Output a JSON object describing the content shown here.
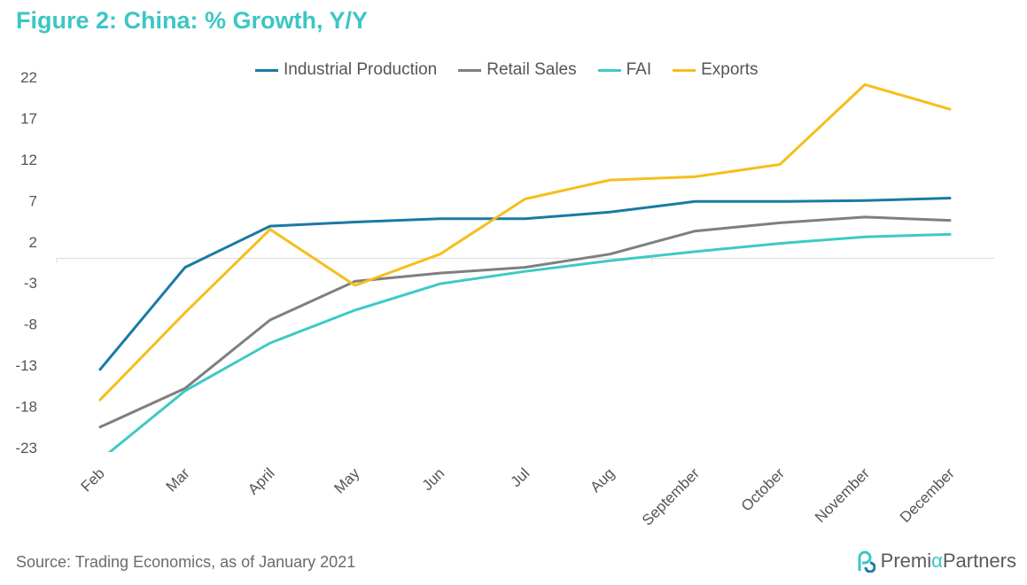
{
  "title": "Figure 2: China: % Growth, Y/Y",
  "source": "Source: Trading Economics, as of January 2021",
  "brand": {
    "part1": "Premi",
    "part2": "α",
    "part3": " Partners",
    "icon": "premia-logo-icon"
  },
  "chart_data": {
    "type": "line",
    "categories": [
      "Feb",
      "Mar",
      "April",
      "May",
      "Jun",
      "Jul",
      "Aug",
      "September",
      "October",
      "November",
      "December"
    ],
    "series": [
      {
        "name": "Industrial Production",
        "color": "#1a7aa5",
        "values": [
          -13.5,
          -1.1,
          3.9,
          4.4,
          4.8,
          4.8,
          5.6,
          6.9,
          6.9,
          7.0,
          7.3
        ]
      },
      {
        "name": "Retail Sales",
        "color": "#7f7f7f",
        "values": [
          -20.5,
          -15.8,
          -7.5,
          -2.8,
          -1.8,
          -1.1,
          0.5,
          3.3,
          4.3,
          5.0,
          4.6
        ]
      },
      {
        "name": "FAI",
        "color": "#3dcac6",
        "values": [
          -24.5,
          -16.1,
          -10.3,
          -6.3,
          -3.1,
          -1.6,
          -0.3,
          0.8,
          1.8,
          2.6,
          2.9
        ]
      },
      {
        "name": "Exports",
        "color": "#f5bf1a",
        "values": [
          -17.2,
          -6.6,
          3.5,
          -3.3,
          0.5,
          7.2,
          9.5,
          9.9,
          11.4,
          21.1,
          18.1
        ]
      }
    ],
    "yticks": [
      22,
      17,
      12,
      7,
      2,
      -3,
      -8,
      -13,
      -18,
      -23
    ],
    "ylim": [
      -23,
      22
    ],
    "xlabel": "",
    "ylabel": "",
    "grid": false,
    "legend": "top-center"
  }
}
